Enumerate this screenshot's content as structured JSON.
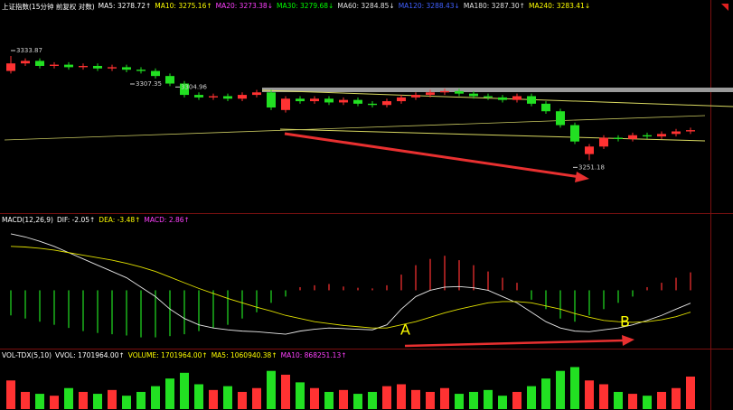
{
  "chart_data": [
    {
      "type": "candlestick",
      "header": [
        {
          "text": "上证指数(15分钟 前复权 对数)",
          "color": "#ffffff"
        },
        {
          "text": "MA5: 3278.72↑",
          "color": "#ffffff"
        },
        {
          "text": "MA10: 3275.16↑",
          "color": "#ffff00"
        },
        {
          "text": "MA20: 3273.38↓",
          "color": "#ff40ff"
        },
        {
          "text": "MA30: 3279.68↓",
          "color": "#00ff00"
        },
        {
          "text": "MA60: 3284.85↓",
          "color": "#e0e0e0"
        },
        {
          "text": "MA120: 3288.43↓",
          "color": "#4060ff"
        },
        {
          "text": "MA180: 3287.30↑",
          "color": "#e0e0e0"
        },
        {
          "text": "MA240: 3283.41↓",
          "color": "#ffff00"
        }
      ],
      "open": [
        3322,
        3328,
        3330,
        3326,
        3327,
        3325,
        3326,
        3324,
        3325,
        3323,
        3322,
        3318,
        3312,
        3303,
        3301,
        3302,
        3300,
        3303,
        3305,
        3291,
        3300,
        3298,
        3300,
        3297,
        3299,
        3296,
        3295,
        3298,
        3301,
        3303,
        3305,
        3306,
        3304,
        3302,
        3301,
        3299,
        3302,
        3296,
        3290,
        3279,
        3256,
        3262,
        3269,
        3268,
        3271,
        3270,
        3272,
        3274
      ],
      "high": [
        3333.87,
        3332,
        3332,
        3329,
        3329,
        3328,
        3328,
        3327,
        3327,
        3325,
        3324,
        3320,
        3314,
        3305,
        3304,
        3304,
        3305,
        3307,
        3307,
        3302,
        3302,
        3302,
        3302,
        3301,
        3301,
        3298,
        3300,
        3303,
        3305,
        3307,
        3308,
        3308,
        3306,
        3304,
        3303,
        3304,
        3304,
        3298,
        3292,
        3281,
        3264,
        3271,
        3271,
        3273,
        3273,
        3274,
        3276,
        3277
      ],
      "low": [
        3320,
        3326,
        3324,
        3324,
        3323,
        3323,
        3322,
        3322,
        3321,
        3320,
        3316,
        3310,
        3301,
        3299,
        3299,
        3298,
        3298,
        3301,
        3291,
        3289,
        3296,
        3296,
        3295,
        3295,
        3294,
        3293,
        3293,
        3296,
        3299,
        3301,
        3303,
        3302,
        3300,
        3299,
        3297,
        3297,
        3294,
        3288,
        3277,
        3264,
        3251.18,
        3260,
        3266,
        3266,
        3268,
        3268,
        3270,
        3272
      ],
      "close": [
        3328,
        3330,
        3326,
        3327,
        3325,
        3326,
        3324,
        3325,
        3323,
        3322,
        3318,
        3312,
        3303,
        3301,
        3302,
        3300,
        3303,
        3305,
        3293,
        3300,
        3298,
        3300,
        3297,
        3299,
        3296,
        3295,
        3298,
        3301,
        3303,
        3305,
        3306,
        3304,
        3302,
        3301,
        3299,
        3302,
        3296,
        3290,
        3279,
        3266,
        3262,
        3269,
        3268,
        3271,
        3270,
        3272,
        3274,
        3275
      ],
      "ylim": [
        3212,
        3364
      ],
      "up_color": "#ff3232",
      "down_color": "#22e022",
      "annotations": [
        3333.87,
        3307.35,
        3304.96,
        3251.18
      ]
    },
    {
      "type": "macd",
      "header": [
        {
          "text": "MACD(12,26,9)",
          "color": "#ffffff"
        },
        {
          "text": "DIF: -2.05↑",
          "color": "#ffffff"
        },
        {
          "text": "DEA: -3.48↑",
          "color": "#ffff00"
        },
        {
          "text": "MACD: 2.86↑",
          "color": "#ff40ff"
        }
      ],
      "macd": [
        -4,
        -4.5,
        -5,
        -5.5,
        -6,
        -6.5,
        -6.8,
        -7,
        -7.2,
        -7.5,
        -7.5,
        -7.3,
        -7,
        -6.5,
        -6,
        -5.5,
        -4.5,
        -3.5,
        -2,
        -1,
        0.5,
        0.8,
        1,
        0.6,
        0.4,
        0.3,
        0.8,
        2.5,
        4,
        5,
        5.5,
        4.8,
        4,
        3,
        2,
        1.2,
        -1.5,
        -3,
        -4.5,
        -5,
        -4,
        -3,
        -2,
        -1,
        0.5,
        1.2,
        2,
        2.86
      ],
      "dif": [
        9,
        8.5,
        7.8,
        7,
        6,
        5,
        4,
        3,
        2,
        0.5,
        -1,
        -3,
        -4.5,
        -5.5,
        -6,
        -6.3,
        -6.5,
        -6.6,
        -6.8,
        -7,
        -6.5,
        -6.2,
        -6,
        -6.1,
        -6.2,
        -6.3,
        -5.5,
        -3,
        -1,
        0,
        0.5,
        0.6,
        0.4,
        0,
        -1,
        -2,
        -3.5,
        -5,
        -6,
        -6.5,
        -6.6,
        -6.3,
        -6,
        -5.5,
        -4.8,
        -4,
        -3,
        -2.05
      ],
      "dea": [
        7,
        6.9,
        6.7,
        6.4,
        6,
        5.6,
        5.2,
        4.8,
        4.3,
        3.7,
        3,
        2.1,
        1.2,
        0.3,
        -0.5,
        -1.3,
        -2,
        -2.7,
        -3.3,
        -4,
        -4.5,
        -5,
        -5.3,
        -5.6,
        -5.8,
        -6,
        -6,
        -5.5,
        -5,
        -4.3,
        -3.6,
        -3,
        -2.5,
        -2,
        -1.8,
        -1.8,
        -2,
        -2.5,
        -3,
        -3.7,
        -4.3,
        -4.8,
        -5,
        -5.1,
        -5,
        -4.7,
        -4.2,
        -3.48
      ],
      "dif_color": "#e8e8e8",
      "dea_color": "#e0e000",
      "ylim": [
        -9,
        11
      ],
      "annotations": [
        "A",
        "B"
      ]
    },
    {
      "type": "bar",
      "header": [
        {
          "text": "VOL-TDX(5,10)",
          "color": "#ffffff"
        },
        {
          "text": "VVOL: 1701964.00↑",
          "color": "#ffffff"
        },
        {
          "text": "VOLUME: 1701964.00↑",
          "color": "#ffff00"
        },
        {
          "text": "MA5: 1060940.38↑",
          "color": "#ffff00"
        },
        {
          "text": "MA10: 868251.13↑",
          "color": "#ff40ff"
        }
      ],
      "values": [
        1500000,
        900000,
        800000,
        700000,
        1100000,
        900000,
        800000,
        1000000,
        700000,
        900000,
        1200000,
        1600000,
        1900000,
        1300000,
        1000000,
        1200000,
        900000,
        1100000,
        2000000,
        1800000,
        1400000,
        1100000,
        900000,
        1000000,
        800000,
        900000,
        1200000,
        1300000,
        1000000,
        900000,
        1100000,
        800000,
        900000,
        1000000,
        700000,
        900000,
        1200000,
        1600000,
        2000000,
        2200000,
        1500000,
        1300000,
        900000,
        800000,
        700000,
        900000,
        1100000,
        1701964
      ],
      "ylim": [
        0,
        2600000
      ]
    }
  ]
}
